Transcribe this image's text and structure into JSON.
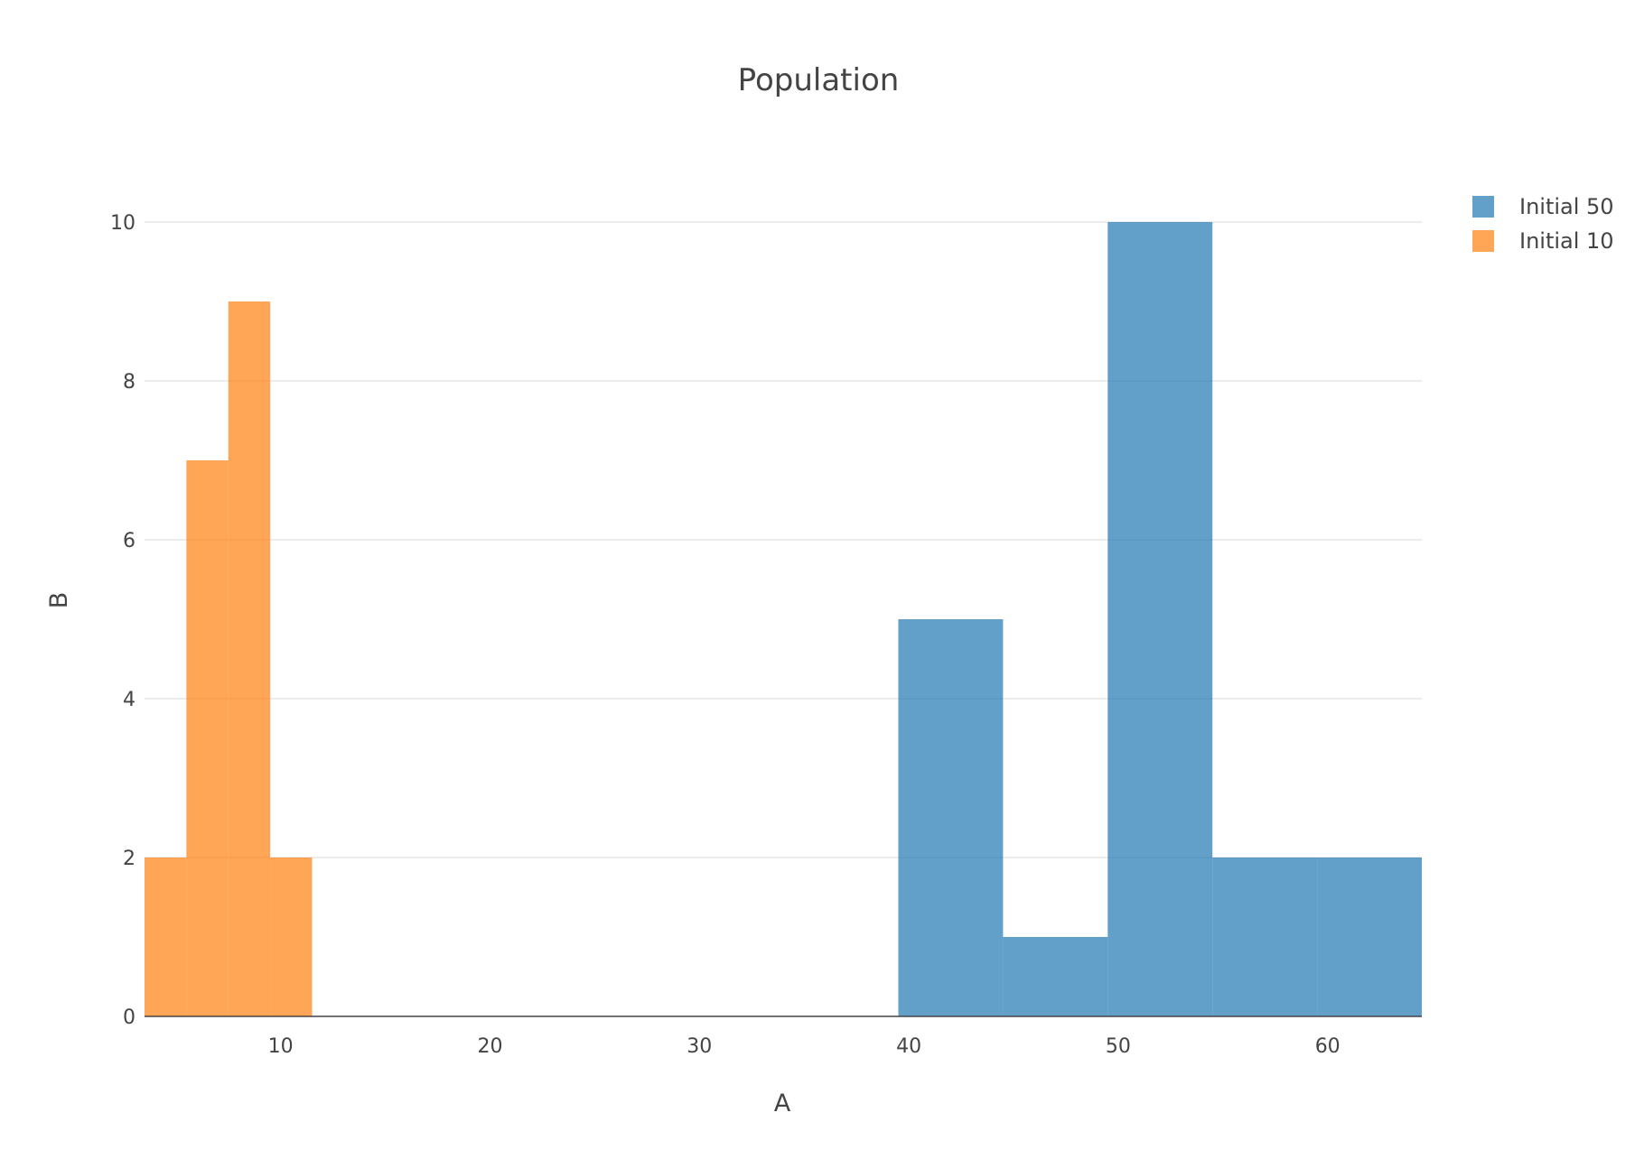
{
  "chart_data": {
    "type": "bar",
    "title": "Population",
    "xlabel": "A",
    "ylabel": "B",
    "xlim": [
      3.5,
      64.5
    ],
    "ylim": [
      0,
      10
    ],
    "xticks": [
      10,
      20,
      30,
      40,
      50,
      60
    ],
    "yticks": [
      0,
      2,
      4,
      6,
      8,
      10
    ],
    "grid": true,
    "legend_position": "top-right",
    "series": [
      {
        "name": "Initial 50",
        "color": "#1f77b4",
        "bins": [
          {
            "x0": 39.5,
            "x1": 44.5,
            "value": 5
          },
          {
            "x0": 44.5,
            "x1": 49.5,
            "value": 1
          },
          {
            "x0": 49.5,
            "x1": 54.5,
            "value": 10
          },
          {
            "x0": 54.5,
            "x1": 59.5,
            "value": 2
          },
          {
            "x0": 59.5,
            "x1": 64.5,
            "value": 2
          }
        ]
      },
      {
        "name": "Initial 10",
        "color": "#ff7f0e",
        "bins": [
          {
            "x0": 3.5,
            "x1": 5.5,
            "value": 2
          },
          {
            "x0": 5.5,
            "x1": 7.5,
            "value": 7
          },
          {
            "x0": 7.5,
            "x1": 9.5,
            "value": 9
          },
          {
            "x0": 9.5,
            "x1": 11.5,
            "value": 2
          }
        ]
      }
    ]
  }
}
